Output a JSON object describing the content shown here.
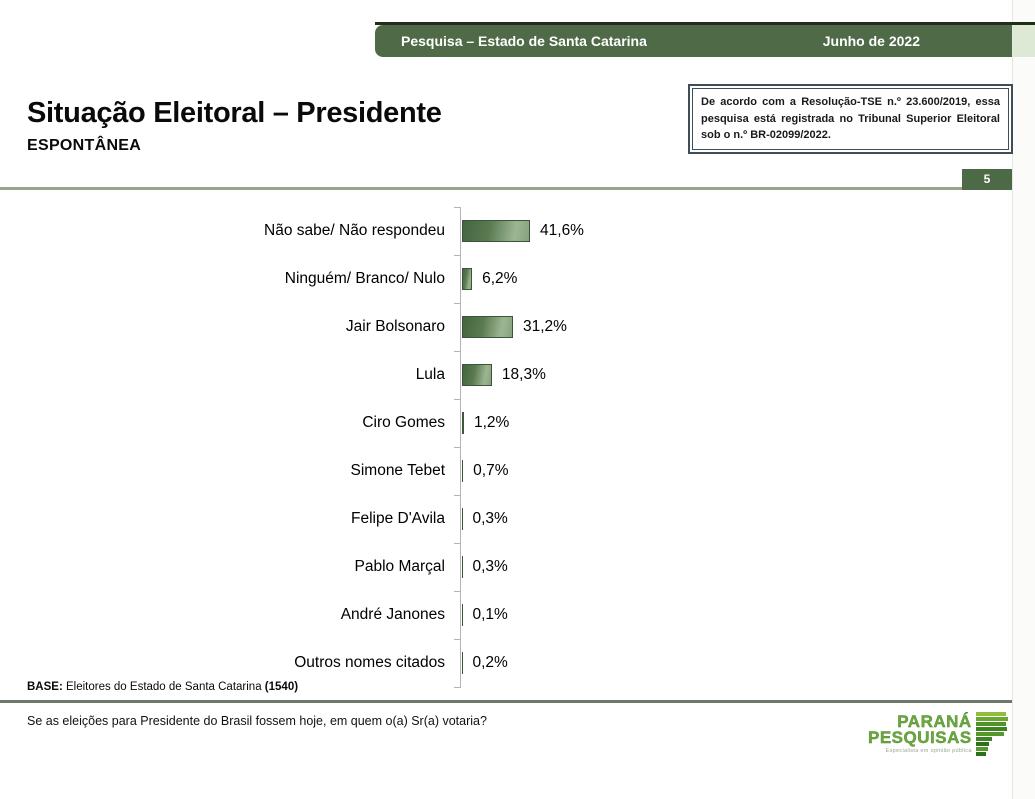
{
  "header": {
    "left_label": "Pesquisa – Estado de Santa Catarina",
    "right_label": "Junho de 2022",
    "bar_color": "#4e6a46",
    "top_line_color": "#1f2e1a"
  },
  "title": {
    "main": "Situação Eleitoral – Presidente",
    "subtitle": "ESPONTÂNEA"
  },
  "tse_box": {
    "text": "De acordo com a Resolução-TSE n.º 23.600/2019, essa pesquisa está registrada no Tribunal Superior Eleitoral sob o n.º BR-02099/2022."
  },
  "page_number": "5",
  "chart_data": {
    "type": "bar",
    "orientation": "horizontal",
    "categories": [
      "Não sabe/ Não respondeu",
      "Ninguém/ Branco/ Nulo",
      "Jair Bolsonaro",
      "Lula",
      "Ciro Gomes",
      "Simone Tebet",
      "Felipe D'Avila",
      "Pablo Marçal",
      "André Janones",
      "Outros nomes citados"
    ],
    "values": [
      41.6,
      6.2,
      31.2,
      18.3,
      1.2,
      0.7,
      0.3,
      0.3,
      0.1,
      0.2
    ],
    "value_labels": [
      "41,6%",
      "6,2%",
      "31,2%",
      "18,3%",
      "1,2%",
      "0,7%",
      "0,3%",
      "0,3%",
      "0,1%",
      "0,2%"
    ],
    "title": "Situação Eleitoral – Presidente (Espontânea)",
    "xlabel": "",
    "ylabel": "",
    "xlim": [
      0,
      100
    ],
    "grid": false,
    "legend": false,
    "bar_color_dark": "#45653f",
    "bar_color_light": "#9db692"
  },
  "base_note": {
    "prefix": "BASE:",
    "middle": " Eleitores do Estado de Santa Catarina ",
    "count": "(1540)"
  },
  "footer": {
    "question": "Se as eleições para Presidente do Brasil fossem hoje, em quem o(a) Sr(a) votaria?"
  },
  "logo": {
    "line1": "PARANÁ",
    "line2": "PESQUISAS",
    "tagline": "Especialista em opinião pública"
  }
}
